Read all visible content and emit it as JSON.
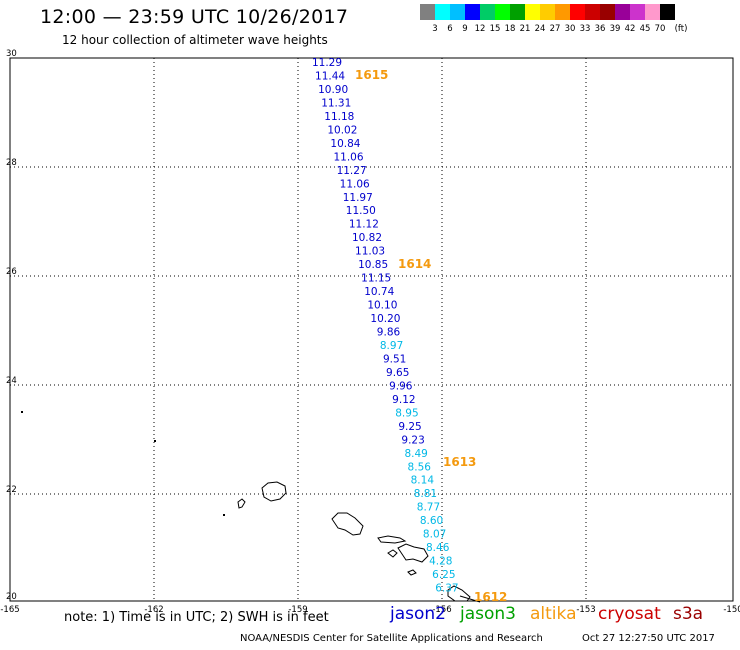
{
  "header": {
    "title": "12:00 — 23:59 UTC 10/26/2017",
    "subtitle": "12 hour collection of altimeter wave heights"
  },
  "colorbar": {
    "unit_label": "(ft)",
    "colors": [
      "#808080",
      "#00ffff",
      "#00bfff",
      "#0000ff",
      "#00cc66",
      "#00ff00",
      "#00a000",
      "#ffff00",
      "#ffcc00",
      "#ff9900",
      "#ff0000",
      "#cc0000",
      "#990000",
      "#990099",
      "#cc33cc",
      "#ff99cc",
      "#000000"
    ],
    "labels": [
      "3",
      "6",
      "9",
      "12",
      "15",
      "18",
      "21",
      "24",
      "27",
      "30",
      "33",
      "36",
      "39",
      "42",
      "45",
      "70"
    ]
  },
  "axes": {
    "lat_labels": [
      "30",
      "28",
      "26",
      "24",
      "22",
      "20"
    ],
    "lon_labels": [
      "-165",
      "-162",
      "-159",
      "-156",
      "-153",
      "-150"
    ]
  },
  "observations": [
    {
      "v": "11.29",
      "c": "#0000cc"
    },
    {
      "v": "11.44",
      "c": "#0000cc"
    },
    {
      "v": "10.90",
      "c": "#0000cc"
    },
    {
      "v": "11.31",
      "c": "#0000cc"
    },
    {
      "v": "11.18",
      "c": "#0000cc"
    },
    {
      "v": "10.02",
      "c": "#0000cc"
    },
    {
      "v": "10.84",
      "c": "#0000cc"
    },
    {
      "v": "11.06",
      "c": "#0000cc"
    },
    {
      "v": "11.27",
      "c": "#0000cc"
    },
    {
      "v": "11.06",
      "c": "#0000cc"
    },
    {
      "v": "11.97",
      "c": "#0000cc"
    },
    {
      "v": "11.50",
      "c": "#0000cc"
    },
    {
      "v": "11.12",
      "c": "#0000cc"
    },
    {
      "v": "10.82",
      "c": "#0000cc"
    },
    {
      "v": "11.03",
      "c": "#0000cc"
    },
    {
      "v": "10.85",
      "c": "#0000cc"
    },
    {
      "v": "11.15",
      "c": "#0000cc"
    },
    {
      "v": "10.74",
      "c": "#0000cc"
    },
    {
      "v": "10.10",
      "c": "#0000cc"
    },
    {
      "v": "10.20",
      "c": "#0000cc"
    },
    {
      "v": "9.86",
      "c": "#0000cc"
    },
    {
      "v": "8.97",
      "c": "#00b8e6"
    },
    {
      "v": "9.51",
      "c": "#0000cc"
    },
    {
      "v": "9.65",
      "c": "#0000cc"
    },
    {
      "v": "9.96",
      "c": "#0000cc"
    },
    {
      "v": "9.12",
      "c": "#0000cc"
    },
    {
      "v": "8.95",
      "c": "#00b8e6"
    },
    {
      "v": "9.25",
      "c": "#0000cc"
    },
    {
      "v": "9.23",
      "c": "#0000cc"
    },
    {
      "v": "8.49",
      "c": "#00b8e6"
    },
    {
      "v": "8.56",
      "c": "#00b8e6"
    },
    {
      "v": "8.14",
      "c": "#00b8e6"
    },
    {
      "v": "8.81",
      "c": "#00b8e6"
    },
    {
      "v": "8.77",
      "c": "#00b8e6"
    },
    {
      "v": "8.60",
      "c": "#00b8e6"
    },
    {
      "v": "8.07",
      "c": "#00b8e6"
    },
    {
      "v": "8.46",
      "c": "#00b8e6"
    },
    {
      "v": "4.28",
      "c": "#00b8e6"
    },
    {
      "v": "6.25",
      "c": "#00b8e6"
    },
    {
      "v": "6.37",
      "c": "#00b8e6"
    }
  ],
  "pass_labels": [
    "1615",
    "1614",
    "1613",
    "1612"
  ],
  "footer": {
    "note": "note: 1) Time is in UTC; 2) SWH is in feet",
    "satellites": [
      {
        "name": "jason2",
        "color": "#0000cc"
      },
      {
        "name": "jason3",
        "color": "#00a000"
      },
      {
        "name": "altika",
        "color": "#f49a0f"
      },
      {
        "name": "cryosat",
        "color": "#cc0000"
      },
      {
        "name": "s3a",
        "color": "#990000"
      }
    ],
    "organization": "NOAA/NESDIS Center for Satellite Applications and Research",
    "timestamp": "Oct 27 12:27:50 UTC 2017"
  }
}
